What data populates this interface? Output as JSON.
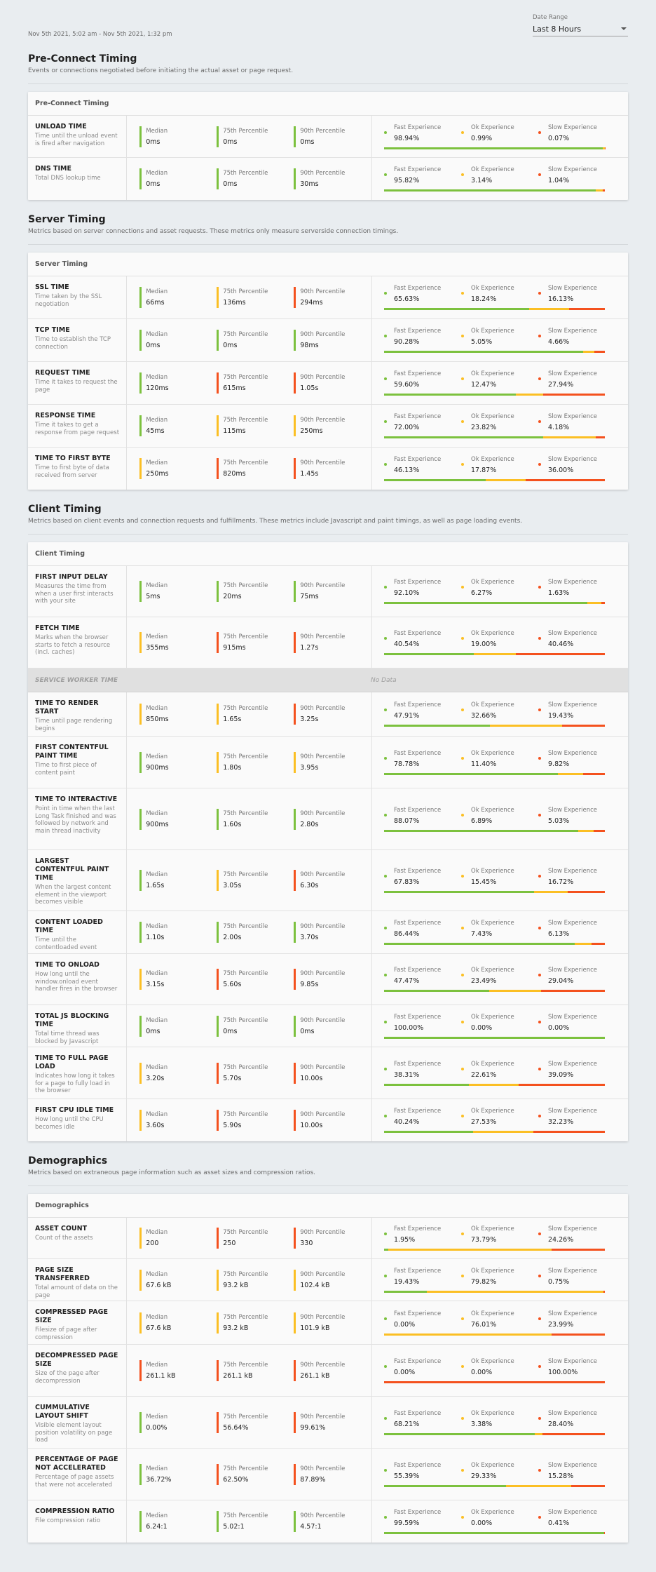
{
  "header": {
    "date_range_text": "Nov 5th 2021, 5:02 am - Nov 5th 2021, 1:32 pm",
    "date_range_label": "Date Range",
    "date_range_value": "Last 8 Hours"
  },
  "colors": {
    "fast": "#7cc13e",
    "ok": "#fbbf24",
    "slow": "#f4511e"
  },
  "labels": {
    "median": "Median",
    "p75": "75th Percentile",
    "p90": "90th Percentile",
    "fast": "Fast Experience",
    "ok": "Ok Experience",
    "slow": "Slow Experience"
  },
  "sections": [
    {
      "title": "Pre-Connect Timing",
      "subtitle": "Events or connections negotiated before initiating the actual asset or page request.",
      "card_title": "Pre-Connect Timing",
      "rows": [
        {
          "title": "UNLOAD TIME",
          "desc": "Time until the unload event is fired after navigation",
          "median": "0ms",
          "p75": "0ms",
          "p90": "0ms",
          "status": [
            "fast",
            "fast",
            "fast"
          ],
          "fast": "98.94%",
          "ok": "0.99%",
          "slow": "0.07%",
          "h": 60
        },
        {
          "title": "DNS TIME",
          "desc": "Total DNS lookup time",
          "median": "0ms",
          "p75": "0ms",
          "p90": "30ms",
          "status": [
            "fast",
            "fast",
            "fast"
          ],
          "fast": "95.82%",
          "ok": "3.14%",
          "slow": "1.04%",
          "h": 60
        }
      ]
    },
    {
      "title": "Server Timing",
      "subtitle": "Metrics based on server connections and asset requests. These metrics only measure serverside connection timings.",
      "card_title": "Server Timing",
      "rows": [
        {
          "title": "SSL TIME",
          "desc": "Time taken by the SSL negotiation",
          "median": "66ms",
          "p75": "136ms",
          "p90": "294ms",
          "status": [
            "fast",
            "ok",
            "slow"
          ],
          "fast": "65.63%",
          "ok": "18.24%",
          "slow": "16.13%",
          "h": 61
        },
        {
          "title": "TCP TIME",
          "desc": "Time to establish the TCP connection",
          "median": "0ms",
          "p75": "0ms",
          "p90": "98ms",
          "status": [
            "fast",
            "fast",
            "fast"
          ],
          "fast": "90.28%",
          "ok": "5.05%",
          "slow": "4.66%",
          "h": 61
        },
        {
          "title": "REQUEST TIME",
          "desc": "Time it takes to request the page",
          "median": "120ms",
          "p75": "615ms",
          "p90": "1.05s",
          "status": [
            "fast",
            "slow",
            "slow"
          ],
          "fast": "59.60%",
          "ok": "12.47%",
          "slow": "27.94%",
          "h": 61
        },
        {
          "title": "RESPONSE TIME",
          "desc": "Time it takes to get a response from page request",
          "median": "45ms",
          "p75": "115ms",
          "p90": "250ms",
          "status": [
            "fast",
            "ok",
            "ok"
          ],
          "fast": "72.00%",
          "ok": "23.82%",
          "slow": "4.18%",
          "h": 61
        },
        {
          "title": "TIME TO FIRST BYTE",
          "desc": "Time to first byte of data received from server",
          "median": "250ms",
          "p75": "820ms",
          "p90": "1.45s",
          "status": [
            "ok",
            "slow",
            "slow"
          ],
          "fast": "46.13%",
          "ok": "17.87%",
          "slow": "36.00%",
          "h": 60
        }
      ]
    },
    {
      "title": "Client Timing",
      "subtitle": "Metrics based on client events and connection requests and fulfillments. These metrics include Javascript and paint timings, as well as page loading events.",
      "card_title": "Client Timing",
      "rows": [
        {
          "title": "FIRST INPUT DELAY",
          "desc": "Measures the time from when a user first interacts with your site",
          "median": "5ms",
          "p75": "20ms",
          "p90": "75ms",
          "status": [
            "fast",
            "fast",
            "fast"
          ],
          "fast": "92.10%",
          "ok": "6.27%",
          "slow": "1.63%",
          "h": 73
        },
        {
          "title": "FETCH TIME",
          "desc": "Marks when the browser starts to fetch a resource (incl. caches)",
          "median": "355ms",
          "p75": "915ms",
          "p90": "1.27s",
          "status": [
            "ok",
            "slow",
            "slow"
          ],
          "fast": "40.54%",
          "ok": "19.00%",
          "slow": "40.46%",
          "h": 73
        },
        {
          "separator": true,
          "label": "SERVICE WORKER TIME",
          "value": "No Data"
        },
        {
          "title": "TIME TO RENDER START",
          "desc": "Time until page rendering begins",
          "median": "850ms",
          "p75": "1.65s",
          "p90": "3.25s",
          "status": [
            "ok",
            "ok",
            "slow"
          ],
          "fast": "47.91%",
          "ok": "32.66%",
          "slow": "19.43%",
          "h": 63
        },
        {
          "title": "FIRST CONTENTFUL PAINT TIME",
          "desc": "Time to first piece of content paint",
          "median": "900ms",
          "p75": "1.80s",
          "p90": "3.95s",
          "status": [
            "fast",
            "ok",
            "ok"
          ],
          "fast": "78.78%",
          "ok": "11.40%",
          "slow": "9.82%",
          "h": 74
        },
        {
          "title": "TIME TO INTERACTIVE",
          "desc": "Point in time when the last Long Task finished and was followed by network and main thread inactivity",
          "median": "900ms",
          "p75": "1.60s",
          "p90": "2.80s",
          "status": [
            "fast",
            "fast",
            "fast"
          ],
          "fast": "88.07%",
          "ok": "6.89%",
          "slow": "5.03%",
          "h": 88
        },
        {
          "title": "LARGEST CONTENTFUL PAINT TIME",
          "desc": "When the largest content element in the viewport becomes visible",
          "median": "1.65s",
          "p75": "3.05s",
          "p90": "6.30s",
          "status": [
            "fast",
            "ok",
            "slow"
          ],
          "fast": "67.83%",
          "ok": "15.45%",
          "slow": "16.72%",
          "h": 87
        },
        {
          "title": "CONTENT LOADED TIME",
          "desc": "Time until the contentloaded event",
          "median": "1.10s",
          "p75": "2.00s",
          "p90": "3.70s",
          "status": [
            "fast",
            "fast",
            "fast"
          ],
          "fast": "86.44%",
          "ok": "7.43%",
          "slow": "6.13%",
          "h": 61
        },
        {
          "title": "TIME TO ONLOAD",
          "desc": "How long until the window.onload event handler fires in the browser",
          "median": "3.15s",
          "p75": "5.60s",
          "p90": "9.85s",
          "status": [
            "ok",
            "slow",
            "slow"
          ],
          "fast": "47.47%",
          "ok": "23.49%",
          "slow": "29.04%",
          "h": 73
        },
        {
          "title": "TOTAL JS BLOCKING TIME",
          "desc": "Total time thread was blocked by Javascript",
          "median": "0ms",
          "p75": "0ms",
          "p90": "0ms",
          "status": [
            "fast",
            "fast",
            "fast"
          ],
          "fast": "100.00%",
          "ok": "0.00%",
          "slow": "0.00%",
          "h": 60
        },
        {
          "title": "TIME TO FULL PAGE LOAD",
          "desc": "Indicates how long it takes for a page to fully load in the browser",
          "median": "3.20s",
          "p75": "5.70s",
          "p90": "10.00s",
          "status": [
            "ok",
            "slow",
            "slow"
          ],
          "fast": "38.31%",
          "ok": "22.61%",
          "slow": "39.09%",
          "h": 74
        },
        {
          "title": "FIRST CPU IDLE TIME",
          "desc": "How long until the CPU becomes idle",
          "median": "3.60s",
          "p75": "5.90s",
          "p90": "10.00s",
          "status": [
            "ok",
            "slow",
            "slow"
          ],
          "fast": "40.24%",
          "ok": "27.53%",
          "slow": "32.23%",
          "h": 60
        }
      ]
    },
    {
      "title": "Demographics",
      "subtitle": "Metrics based on extraneous page information such as asset sizes and compression ratios.",
      "card_title": "Demographics",
      "rows": [
        {
          "title": "ASSET COUNT",
          "desc": "Count of the assets",
          "median": "200",
          "p75": "250",
          "p90": "330",
          "status": [
            "ok",
            "slow",
            "slow"
          ],
          "fast": "1.95%",
          "ok": "73.79%",
          "slow": "24.26%",
          "h": 59
        },
        {
          "title": "PAGE SIZE TRANSFERRED",
          "desc": "Total amount of data on the page",
          "median": "67.6 kB",
          "p75": "93.2 kB",
          "p90": "102.4 kB",
          "status": [
            "ok",
            "ok",
            "ok"
          ],
          "fast": "19.43%",
          "ok": "79.82%",
          "slow": "0.75%",
          "h": 60
        },
        {
          "title": "COMPRESSED PAGE SIZE",
          "desc": "Filesize of page after compression",
          "median": "67.6 kB",
          "p75": "93.2 kB",
          "p90": "101.9 kB",
          "status": [
            "ok",
            "ok",
            "ok"
          ],
          "fast": "0.00%",
          "ok": "76.01%",
          "slow": "23.99%",
          "h": 62
        },
        {
          "title": "DECOMPRESSED PAGE SIZE",
          "desc": "Size of the page after decompression",
          "median": "261.1 kB",
          "p75": "261.1 kB",
          "p90": "261.1 kB",
          "status": [
            "slow",
            "slow",
            "slow"
          ],
          "fast": "0.00%",
          "ok": "0.00%",
          "slow": "100.00%",
          "h": 74
        },
        {
          "title": "CUMMULATIVE LAYOUT SHIFT",
          "desc": "Visible element layout position volatility on page load",
          "median": "0.00%",
          "p75": "56.64%",
          "p90": "99.61%",
          "status": [
            "fast",
            "slow",
            "slow"
          ],
          "fast": "68.21%",
          "ok": "3.38%",
          "slow": "28.40%",
          "h": 74
        },
        {
          "title": "PERCENTAGE OF PAGE NOT ACCELERATED",
          "desc": "Percentage of page assets that were not accelerated",
          "median": "36.72%",
          "p75": "62.50%",
          "p90": "87.89%",
          "status": [
            "fast",
            "slow",
            "slow"
          ],
          "fast": "55.39%",
          "ok": "29.33%",
          "slow": "15.28%",
          "h": 74
        },
        {
          "title": "COMPRESSION RATIO",
          "desc": "File compression ratio",
          "median": "6.24:1",
          "p75": "5.02:1",
          "p90": "4.57:1",
          "status": [
            "fast",
            "fast",
            "fast"
          ],
          "fast": "99.59%",
          "ok": "0.00%",
          "slow": "0.41%",
          "h": 60
        }
      ]
    }
  ]
}
